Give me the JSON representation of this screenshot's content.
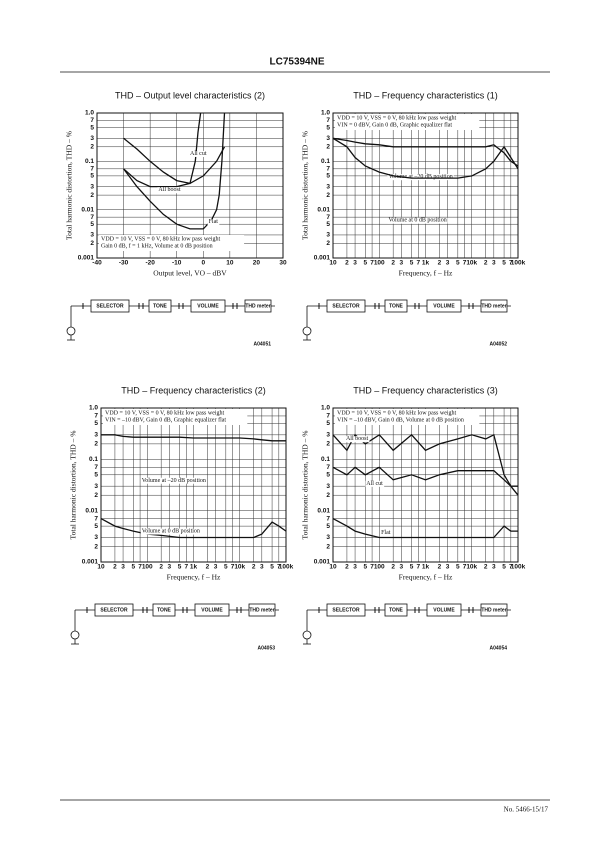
{
  "header": {
    "title": "LC75394NE"
  },
  "footer": {
    "page": "No. 5466-15/17"
  },
  "chart_data": [
    {
      "type": "line",
      "title": "THD – Output level characteristics (2)",
      "xlabel": "Output level, VO – dBV",
      "ylabel": "Total harmonic distortion, THD – %",
      "xscale": "linear",
      "yscale": "log",
      "grid": true,
      "xlim": [
        -40,
        30
      ],
      "ylim": [
        0.001,
        1
      ],
      "xticks": [
        -40,
        -30,
        -20,
        -10,
        0,
        10,
        20,
        30
      ],
      "yticks": [
        {
          "value": 1,
          "label": "1.0"
        },
        {
          "value": 0.7,
          "label": "7"
        },
        {
          "value": 0.5,
          "label": "5"
        },
        {
          "value": 0.3,
          "label": "3"
        },
        {
          "value": 0.2,
          "label": "2"
        },
        0.1,
        {
          "value": 0.07,
          "label": "7"
        },
        {
          "value": 0.05,
          "label": "5"
        },
        {
          "value": 0.03,
          "label": "3"
        },
        {
          "value": 0.02,
          "label": "2"
        },
        0.01,
        {
          "value": 0.007,
          "label": "7"
        },
        {
          "value": 0.005,
          "label": "5"
        },
        {
          "value": 0.003,
          "label": "3"
        },
        {
          "value": 0.002,
          "label": "2"
        },
        0.001
      ],
      "annotations": [
        "VDD = 10 V, VSS = 0 V, 80 kHz low pass weight",
        "Gain 0 dB, f = 1 kHz, Volume at 0 dB position"
      ],
      "series": [
        {
          "name": "All cut",
          "color": "#111111",
          "x": [
            -30,
            -25,
            -20,
            -15,
            -10,
            -5,
            -3,
            -2,
            -1
          ],
          "values": [
            0.3,
            0.18,
            0.1,
            0.06,
            0.04,
            0.035,
            0.1,
            0.4,
            1.0
          ]
        },
        {
          "name": "All boost",
          "color": "#111111",
          "x": [
            -30,
            -25,
            -20,
            -15,
            -10,
            -5,
            0,
            5,
            8
          ],
          "values": [
            0.07,
            0.04,
            0.03,
            0.03,
            0.03,
            0.035,
            0.05,
            0.1,
            0.2
          ]
        },
        {
          "name": "Flat",
          "color": "#111111",
          "x": [
            -30,
            -25,
            -20,
            -15,
            -10,
            -5,
            0,
            3,
            5,
            6,
            7,
            8
          ],
          "values": [
            0.07,
            0.03,
            0.015,
            0.008,
            0.005,
            0.004,
            0.004,
            0.006,
            0.01,
            0.02,
            0.1,
            1.0
          ]
        }
      ]
    },
    {
      "type": "line",
      "title": "THD – Frequency characteristics (1)",
      "xlabel": "Frequency, f – Hz",
      "ylabel": "Total harmonic distortion, THD – %",
      "xscale": "log",
      "yscale": "log",
      "grid": true,
      "xlim": [
        10,
        100000
      ],
      "ylim": [
        0.001,
        1
      ],
      "xticks": [
        10,
        {
          "value": 20,
          "label": "2"
        },
        {
          "value": 30,
          "label": "3"
        },
        {
          "value": 50,
          "label": "5"
        },
        {
          "value": 70,
          "label": "7"
        },
        100,
        {
          "value": 200,
          "label": "2"
        },
        {
          "value": 300,
          "label": "3"
        },
        {
          "value": 500,
          "label": "5"
        },
        {
          "value": 700,
          "label": "7"
        },
        {
          "value": 1000,
          "label": "1k"
        },
        {
          "value": 2000,
          "label": "2"
        },
        {
          "value": 3000,
          "label": "3"
        },
        {
          "value": 5000,
          "label": "5"
        },
        {
          "value": 7000,
          "label": "7"
        },
        {
          "value": 10000,
          "label": "10k"
        },
        {
          "value": 20000,
          "label": "2"
        },
        {
          "value": 30000,
          "label": "3"
        },
        {
          "value": 50000,
          "label": "5"
        },
        {
          "value": 70000,
          "label": "7"
        },
        {
          "value": 100000,
          "label": "100k"
        }
      ],
      "yticks": [
        {
          "value": 1,
          "label": "1.0"
        },
        {
          "value": 0.7,
          "label": "7"
        },
        {
          "value": 0.5,
          "label": "5"
        },
        {
          "value": 0.3,
          "label": "3"
        },
        {
          "value": 0.2,
          "label": "2"
        },
        0.1,
        {
          "value": 0.07,
          "label": "7"
        },
        {
          "value": 0.05,
          "label": "5"
        },
        {
          "value": 0.03,
          "label": "3"
        },
        {
          "value": 0.02,
          "label": "2"
        },
        0.01,
        {
          "value": 0.007,
          "label": "7"
        },
        {
          "value": 0.005,
          "label": "5"
        },
        {
          "value": 0.003,
          "label": "3"
        },
        {
          "value": 0.002,
          "label": "2"
        },
        0.001
      ],
      "annotations": [
        "VDD = 10 V, VSS = 0 V, 80 kHz low pass weight",
        "VIN = 0 dBV, Gain 0 dB, Graphic equalizer flat"
      ],
      "x": [
        10,
        20,
        30,
        50,
        100,
        200,
        500,
        1000,
        2000,
        5000,
        10000,
        20000,
        30000,
        50000,
        70000,
        100000
      ],
      "series": [
        {
          "name": "Volume at –20 dB position",
          "color": "#111111",
          "values": [
            0.3,
            0.27,
            0.25,
            0.23,
            0.22,
            0.2,
            0.2,
            0.2,
            0.2,
            0.2,
            0.2,
            0.2,
            0.22,
            0.15,
            0.1,
            0.08
          ]
        },
        {
          "name": "Volume at 0 dB position",
          "color": "#111111",
          "values": [
            0.3,
            0.2,
            0.12,
            0.08,
            0.06,
            0.05,
            0.045,
            0.045,
            0.045,
            0.045,
            0.05,
            0.07,
            0.1,
            0.2,
            0.12,
            0.07
          ]
        }
      ]
    },
    {
      "type": "line",
      "title": "THD – Frequency characteristics (2)",
      "xlabel": "Frequency, f – Hz",
      "ylabel": "Total harmonic distortion, THD – %",
      "xscale": "log",
      "yscale": "log",
      "grid": true,
      "xlim": [
        10,
        100000
      ],
      "ylim": [
        0.001,
        1
      ],
      "xticks": [
        10,
        {
          "value": 20,
          "label": "2"
        },
        {
          "value": 30,
          "label": "3"
        },
        {
          "value": 50,
          "label": "5"
        },
        {
          "value": 70,
          "label": "7"
        },
        100,
        {
          "value": 200,
          "label": "2"
        },
        {
          "value": 300,
          "label": "3"
        },
        {
          "value": 500,
          "label": "5"
        },
        {
          "value": 700,
          "label": "7"
        },
        {
          "value": 1000,
          "label": "1k"
        },
        {
          "value": 2000,
          "label": "2"
        },
        {
          "value": 3000,
          "label": "3"
        },
        {
          "value": 5000,
          "label": "5"
        },
        {
          "value": 7000,
          "label": "7"
        },
        {
          "value": 10000,
          "label": "10k"
        },
        {
          "value": 20000,
          "label": "2"
        },
        {
          "value": 30000,
          "label": "3"
        },
        {
          "value": 50000,
          "label": "5"
        },
        {
          "value": 70000,
          "label": "7"
        },
        {
          "value": 100000,
          "label": "100k"
        }
      ],
      "yticks": [
        {
          "value": 1,
          "label": "1.0"
        },
        {
          "value": 0.7,
          "label": "7"
        },
        {
          "value": 0.5,
          "label": "5"
        },
        {
          "value": 0.3,
          "label": "3"
        },
        {
          "value": 0.2,
          "label": "2"
        },
        0.1,
        {
          "value": 0.07,
          "label": "7"
        },
        {
          "value": 0.05,
          "label": "5"
        },
        {
          "value": 0.03,
          "label": "3"
        },
        {
          "value": 0.02,
          "label": "2"
        },
        0.01,
        {
          "value": 0.007,
          "label": "7"
        },
        {
          "value": 0.005,
          "label": "5"
        },
        {
          "value": 0.003,
          "label": "3"
        },
        {
          "value": 0.002,
          "label": "2"
        },
        0.001
      ],
      "annotations": [
        "VDD = 10 V, VSS = 0 V, 80 kHz low pass weight",
        "VIN = –10 dBV, Gain 0 dB, Graphic equalizer flat"
      ],
      "x": [
        10,
        20,
        30,
        50,
        100,
        200,
        500,
        1000,
        2000,
        5000,
        10000,
        20000,
        30000,
        50000,
        70000,
        100000
      ],
      "series": [
        {
          "name": "Volume at –20 dB position",
          "color": "#111111",
          "values": [
            0.3,
            0.3,
            0.28,
            0.27,
            0.27,
            0.27,
            0.27,
            0.26,
            0.26,
            0.26,
            0.26,
            0.25,
            0.24,
            0.23,
            0.23,
            0.23
          ]
        },
        {
          "name": "Volume at 0 dB position",
          "color": "#111111",
          "values": [
            0.007,
            0.005,
            0.0045,
            0.004,
            0.0035,
            0.0033,
            0.003,
            0.003,
            0.003,
            0.003,
            0.003,
            0.003,
            0.0035,
            0.006,
            0.005,
            0.004
          ]
        }
      ]
    },
    {
      "type": "line",
      "title": "THD – Frequency characteristics (3)",
      "xlabel": "Frequency, f – Hz",
      "ylabel": "Total harmonic distortion, THD – %",
      "xscale": "log",
      "yscale": "log",
      "grid": true,
      "xlim": [
        10,
        100000
      ],
      "ylim": [
        0.001,
        1
      ],
      "xticks": [
        10,
        {
          "value": 20,
          "label": "2"
        },
        {
          "value": 30,
          "label": "3"
        },
        {
          "value": 50,
          "label": "5"
        },
        {
          "value": 70,
          "label": "7"
        },
        100,
        {
          "value": 200,
          "label": "2"
        },
        {
          "value": 300,
          "label": "3"
        },
        {
          "value": 500,
          "label": "5"
        },
        {
          "value": 700,
          "label": "7"
        },
        {
          "value": 1000,
          "label": "1k"
        },
        {
          "value": 2000,
          "label": "2"
        },
        {
          "value": 3000,
          "label": "3"
        },
        {
          "value": 5000,
          "label": "5"
        },
        {
          "value": 7000,
          "label": "7"
        },
        {
          "value": 10000,
          "label": "10k"
        },
        {
          "value": 20000,
          "label": "2"
        },
        {
          "value": 30000,
          "label": "3"
        },
        {
          "value": 50000,
          "label": "5"
        },
        {
          "value": 70000,
          "label": "7"
        },
        {
          "value": 100000,
          "label": "100k"
        }
      ],
      "yticks": [
        {
          "value": 1,
          "label": "1.0"
        },
        {
          "value": 0.7,
          "label": "7"
        },
        {
          "value": 0.5,
          "label": "5"
        },
        {
          "value": 0.3,
          "label": "3"
        },
        {
          "value": 0.2,
          "label": "2"
        },
        0.1,
        {
          "value": 0.07,
          "label": "7"
        },
        {
          "value": 0.05,
          "label": "5"
        },
        {
          "value": 0.03,
          "label": "3"
        },
        {
          "value": 0.02,
          "label": "2"
        },
        0.01,
        {
          "value": 0.007,
          "label": "7"
        },
        {
          "value": 0.005,
          "label": "5"
        },
        {
          "value": 0.003,
          "label": "3"
        },
        {
          "value": 0.002,
          "label": "2"
        },
        0.001
      ],
      "annotations": [
        "VDD = 10 V, VSS = 0 V, 80 kHz low pass weight",
        "VIN = –10 dBV, Gain 0 dB, Volume at 0 dB position"
      ],
      "x": [
        10,
        20,
        30,
        50,
        100,
        200,
        500,
        1000,
        2000,
        5000,
        10000,
        20000,
        30000,
        50000,
        70000,
        100000
      ],
      "series": [
        {
          "name": "All boost",
          "color": "#111111",
          "values": [
            0.3,
            0.15,
            0.3,
            0.2,
            0.3,
            0.15,
            0.3,
            0.15,
            0.2,
            0.25,
            0.3,
            0.25,
            0.3,
            0.05,
            0.03,
            0.02
          ]
        },
        {
          "name": "All cut",
          "color": "#111111",
          "values": [
            0.07,
            0.05,
            0.07,
            0.05,
            0.07,
            0.04,
            0.05,
            0.04,
            0.05,
            0.06,
            0.06,
            0.06,
            0.06,
            0.04,
            0.03,
            0.03
          ]
        },
        {
          "name": "Flat",
          "color": "#111111",
          "values": [
            0.007,
            0.005,
            0.004,
            0.0035,
            0.003,
            0.003,
            0.003,
            0.003,
            0.003,
            0.003,
            0.003,
            0.003,
            0.003,
            0.005,
            0.004,
            0.004
          ]
        }
      ]
    }
  ],
  "diagrams": [
    {
      "blocks": [
        "SELECTOR",
        "TONE",
        "VOLUME",
        "THD meter"
      ],
      "code": "A04051"
    },
    {
      "blocks": [
        "SELECTOR",
        "TONE",
        "VOLUME",
        "THD meter"
      ],
      "code": "A04052"
    },
    {
      "blocks": [
        "SELECTOR",
        "TONE",
        "VOLUME",
        "THD meter"
      ],
      "code": "A04053"
    },
    {
      "blocks": [
        "SELECTOR",
        "TONE",
        "VOLUME",
        "THD meter"
      ],
      "code": "A04054"
    }
  ]
}
